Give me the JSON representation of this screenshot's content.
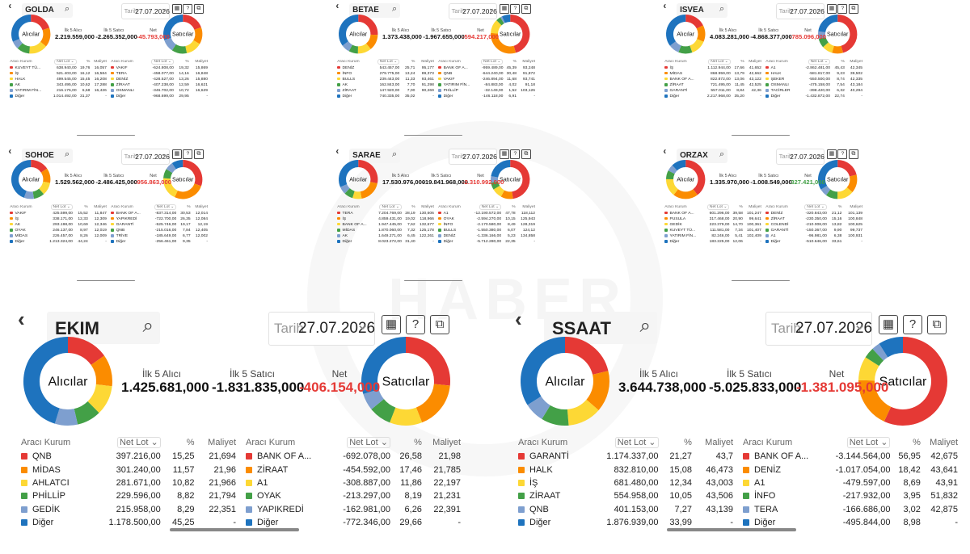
{
  "common": {
    "date_label": "Tarih",
    "date_value": "27.07.2026",
    "col_headers": [
      "Aracı Kurum",
      "Net Lot",
      "%",
      "Maliyet"
    ],
    "buyers_label": "Alıcılar",
    "sellers_label": "Satıcılar",
    "top_buy_label": "İlk 5 Alıcı",
    "top_sell_label": "İlk 5 Satıcı",
    "net_label": "Net",
    "colors": [
      "#e53935",
      "#fb8c00",
      "#fdd835",
      "#43a047",
      "#7e9fcf",
      "#1e73be"
    ]
  },
  "watermark": "HABER",
  "panels": [
    {
      "ticker": "GOLDA",
      "buy_total": "2.219.559,000",
      "sell_total": "-2.265.352,000",
      "net": "-45.793,000",
      "net_sign": "neg",
      "buy_slices": [
        19.76,
        16.12,
        15.45,
        10.62,
        6.68,
        31.37
      ],
      "sell_slices": [
        19.32,
        14.16,
        13.26,
        12.59,
        10.72,
        29.95
      ],
      "buyers": [
        {
          "name": "KUVEYT TÜ...",
          "lot": "638.940,00",
          "pct": "19,76",
          "cost": "16,057"
        },
        {
          "name": "İŞ",
          "lot": "521.403,00",
          "pct": "16,12",
          "cost": "16,584"
        },
        {
          "name": "HALK",
          "lot": "499.545,00",
          "pct": "15,45",
          "cost": "16,208"
        },
        {
          "name": "AK",
          "lot": "343.495,00",
          "pct": "10,62",
          "cost": "17,288"
        },
        {
          "name": "YATIRIM FİN...",
          "lot": "216.176,00",
          "pct": "6,68",
          "cost": "16,426"
        },
        {
          "name": "Diğer",
          "lot": "1.014.492,00",
          "pct": "31,37",
          "cost": "-"
        }
      ],
      "sellers": [
        {
          "name": "VAKIF",
          "lot": "-624.808,00",
          "pct": "19,32",
          "cost": "15,869"
        },
        {
          "name": "TERA",
          "lot": "-458.077,00",
          "pct": "14,16",
          "cost": "16,848"
        },
        {
          "name": "DENİZ",
          "lot": "-428.527,00",
          "pct": "13,26",
          "cost": "15,880"
        },
        {
          "name": "ZİRAAT",
          "lot": "-407.238,00",
          "pct": "12,59",
          "cost": "16,621"
        },
        {
          "name": "OSMANLI",
          "lot": "-346.702,00",
          "pct": "10,72",
          "cost": "16,629"
        },
        {
          "name": "Diğer",
          "lot": "-968.699,00",
          "pct": "29,95",
          "cost": "-"
        }
      ]
    },
    {
      "ticker": "BETAE",
      "buy_total": "1.373.438,000",
      "sell_total": "-1.967.655,000",
      "net": "-594.217,000",
      "net_sign": "neg",
      "buy_slices": [
        25.71,
        13.24,
        11.33,
        7.7,
        7.0,
        35.02
      ],
      "sell_slices": [
        45.39,
        30.48,
        11.68,
        4.02,
        1.52,
        6.91
      ],
      "buyers": [
        {
          "name": "DENİZ",
          "lot": "543.457,00",
          "pct": "25,71",
          "cost": "95,177"
        },
        {
          "name": "İNFO",
          "lot": "279.775,00",
          "pct": "13,24",
          "cost": "89,373"
        },
        {
          "name": "BULLS",
          "lot": "239.443,00",
          "pct": "11,33",
          "cost": "93,461"
        },
        {
          "name": "AK",
          "lot": "162.843,00",
          "pct": "7,70",
          "cost": "91,298"
        },
        {
          "name": "ZİRAAT",
          "lot": "147.920,00",
          "pct": "7,00",
          "cost": "90,269"
        },
        {
          "name": "Diğer",
          "lot": "740.335,00",
          "pct": "35,02",
          "cost": "-"
        }
      ],
      "sellers": [
        {
          "name": "BANK OF A...",
          "lot": "-959.489,00",
          "pct": "45,39",
          "cost": "93,248"
        },
        {
          "name": "QNB",
          "lot": "-644.240,00",
          "pct": "30,48",
          "cost": "91,872"
        },
        {
          "name": "VAKIF",
          "lot": "-246.894,00",
          "pct": "11,68",
          "cost": "93,741"
        },
        {
          "name": "YATIRIM FİN...",
          "lot": "-84.883,00",
          "pct": "4,02",
          "cost": "91,18"
        },
        {
          "name": "PHİLLİP",
          "lot": "-32.149,00",
          "pct": "1,52",
          "cost": "103,126"
        },
        {
          "name": "Diğer",
          "lot": "-146.118,00",
          "pct": "6,91",
          "cost": "-"
        }
      ]
    },
    {
      "ticker": "ISVEA",
      "buy_total": "4.083.281,000",
      "sell_total": "-4.868.377,000",
      "net": "-785.096,000",
      "net_sign": "neg",
      "buy_slices": [
        17.66,
        13.79,
        13.06,
        11.45,
        8.84,
        35.2
      ],
      "sell_slices": [
        45.43,
        9.23,
        8.74,
        7.54,
        6.32,
        22.74
      ],
      "buyers": [
        {
          "name": "İŞ",
          "lot": "1.112.944,00",
          "pct": "17,66",
          "cost": "41,652"
        },
        {
          "name": "MİDAS",
          "lot": "868.959,00",
          "pct": "13,79",
          "cost": "42,662"
        },
        {
          "name": "BANK OF A...",
          "lot": "822.872,00",
          "pct": "13,06",
          "cost": "43,122"
        },
        {
          "name": "ZİRAAT",
          "lot": "721.495,00",
          "pct": "11,45",
          "cost": "42,525"
        },
        {
          "name": "GARANTİ",
          "lot": "557.011,00",
          "pct": "8,84",
          "cost": "42,36"
        },
        {
          "name": "Diğer",
          "lot": "2.217.968,00",
          "pct": "35,20",
          "cost": "-"
        }
      ],
      "sellers": [
        {
          "name": "A1",
          "lot": "-2.862.481,00",
          "pct": "45,43",
          "cost": "42,345"
        },
        {
          "name": "HALK",
          "lot": "-581.817,00",
          "pct": "9,23",
          "cost": "39,502"
        },
        {
          "name": "ŞEKER",
          "lot": "-550.500,00",
          "pct": "8,74",
          "cost": "42,335"
        },
        {
          "name": "OSMANLI",
          "lot": "-475.158,00",
          "pct": "7,54",
          "cost": "43,184"
        },
        {
          "name": "TACİRLER",
          "lot": "-398.420,00",
          "pct": "6,32",
          "cost": "40,294"
        },
        {
          "name": "Diğer",
          "lot": "-1.432.872,00",
          "pct": "22,74",
          "cost": "-"
        }
      ]
    },
    {
      "ticker": "SOHOE",
      "buy_total": "1.529.562,000",
      "sell_total": "-2.486.425,000",
      "net": "-956.863,000",
      "net_sign": "neg",
      "buy_slices": [
        15.52,
        12.33,
        10.69,
        8.97,
        8.26,
        44.24
      ],
      "sell_slices": [
        30.53,
        26.35,
        19.17,
        7.84,
        6.77,
        9.35
      ],
      "buyers": [
        {
          "name": "VAKIF",
          "lot": "425.599,00",
          "pct": "15,52",
          "cost": "11,847"
        },
        {
          "name": "İŞ",
          "lot": "338.171,00",
          "pct": "12,33",
          "cost": "12,309"
        },
        {
          "name": "AK",
          "lot": "293.198,00",
          "pct": "10,69",
          "cost": "12,346"
        },
        {
          "name": "OYAK",
          "lot": "246.137,00",
          "pct": "8,97",
          "cost": "12,019"
        },
        {
          "name": "MİDAS",
          "lot": "226.457,00",
          "pct": "8,26",
          "cost": "12,009"
        },
        {
          "name": "Diğer",
          "lot": "1.213.324,00",
          "pct": "44,24",
          "cost": "-"
        }
      ],
      "sellers": [
        {
          "name": "BANK OF A...",
          "lot": "-837.314,00",
          "pct": "30,53",
          "cost": "12,014"
        },
        {
          "name": "YAPIKREDİ",
          "lot": "-722.700,00",
          "pct": "26,35",
          "cost": "12,084"
        },
        {
          "name": "GARANTİ",
          "lot": "-525.746,00",
          "pct": "19,17",
          "cost": "12,19"
        },
        {
          "name": "QNB",
          "lot": "-215.016,00",
          "pct": "7,84",
          "cost": "12,405"
        },
        {
          "name": "TRİVE",
          "lot": "-185.649,00",
          "pct": "6,77",
          "cost": "12,002"
        },
        {
          "name": "Diğer",
          "lot": "-256.461,00",
          "pct": "9,35",
          "cost": "-"
        }
      ]
    },
    {
      "ticker": "SARAE",
      "buy_total": "17.530.976,000",
      "sell_total": "-19.841.968,000",
      "net": "-2.310.992,000",
      "net_sign": "neg",
      "buy_slices": [
        28.19,
        19.02,
        7.62,
        7.32,
        6.45,
        31.4
      ],
      "sell_slices": [
        47.78,
        10.15,
        8.49,
        6.07,
        5.23,
        22.35
      ],
      "buyers": [
        {
          "name": "TERA",
          "lot": "7.204.769,00",
          "pct": "28,19",
          "cost": "130,606"
        },
        {
          "name": "İŞ",
          "lot": "4.859.431,00",
          "pct": "19,02",
          "cost": "118,966"
        },
        {
          "name": "BANK OF A...",
          "lot": "1.947.445,00",
          "pct": "7,62",
          "cost": "132,677"
        },
        {
          "name": "MİDAS",
          "lot": "1.870.060,00",
          "pct": "7,32",
          "cost": "125,178"
        },
        {
          "name": "AK",
          "lot": "1.649.271,00",
          "pct": "6,45",
          "cost": "122,261"
        },
        {
          "name": "Diğer",
          "lot": "8.023.272,00",
          "pct": "31,40",
          "cost": "-"
        }
      ],
      "sellers": [
        {
          "name": "A1",
          "lot": "-12.190.572,00",
          "pct": "47,78",
          "cost": "118,112"
        },
        {
          "name": "OYAK",
          "lot": "-2.594.270,00",
          "pct": "10,15",
          "cost": "125,943"
        },
        {
          "name": "İNFO",
          "lot": "-2.170.580,00",
          "pct": "8,49",
          "cost": "128,319"
        },
        {
          "name": "BULLS",
          "lot": "-1.550.380,00",
          "pct": "6,07",
          "cost": "124,12"
        },
        {
          "name": "DENİZ",
          "lot": "-1.336.166,00",
          "pct": "5,23",
          "cost": "134,858"
        },
        {
          "name": "Diğer",
          "lot": "-5.712.280,00",
          "pct": "22,35",
          "cost": "-"
        }
      ]
    },
    {
      "ticker": "ORZAX",
      "buy_total": "1.335.970,000",
      "sell_total": "-1.008.549,000",
      "net": "327.421,000",
      "net_sign": "pos",
      "buy_slices": [
        39.58,
        20.9,
        14.7,
        7.34,
        5.41,
        12.06
      ],
      "sell_slices": [
        21.12,
        15.16,
        13.82,
        9.9,
        6.38,
        33.61
      ],
      "buyers": [
        {
          "name": "BANK OF A...",
          "lot": "601.296,00",
          "pct": "39,58",
          "cost": "101,247"
        },
        {
          "name": "PUSULA",
          "lot": "317.468,00",
          "pct": "20,90",
          "cost": "99,641"
        },
        {
          "name": "GEDİK",
          "lot": "223.379,00",
          "pct": "14,70",
          "cost": "100,361"
        },
        {
          "name": "KUVEYT TÜ...",
          "lot": "111.581,00",
          "pct": "7,34",
          "cost": "101,407"
        },
        {
          "name": "YATIRIM FİN...",
          "lot": "82.246,00",
          "pct": "5,41",
          "cost": "102,409"
        },
        {
          "name": "Diğer",
          "lot": "183.225,00",
          "pct": "12,06",
          "cost": "-"
        }
      ],
      "sellers": [
        {
          "name": "DENİZ",
          "lot": "-320.843,00",
          "pct": "21,12",
          "cost": "101,139"
        },
        {
          "name": "ZİRAAT",
          "lot": "-230.350,00",
          "pct": "15,16",
          "cost": "100,848"
        },
        {
          "name": "COLENDİ",
          "lot": "-210.008,00",
          "pct": "13,82",
          "cost": "100,625"
        },
        {
          "name": "GARANTİ",
          "lot": "-150.367,00",
          "pct": "9,90",
          "cost": "99,737"
        },
        {
          "name": "A1",
          "lot": "-96.981,00",
          "pct": "6,38",
          "cost": "100,931"
        },
        {
          "name": "Diğer",
          "lot": "-510.646,00",
          "pct": "33,61",
          "cost": "-"
        }
      ]
    },
    {
      "ticker": "EKIM",
      "buy_total": "1.425.681,000",
      "sell_total": "-1.831.835,000",
      "net": "-406.154,000",
      "net_sign": "neg",
      "buy_slices": [
        15.25,
        11.57,
        10.82,
        8.82,
        8.29,
        45.25
      ],
      "sell_slices": [
        26.58,
        17.46,
        11.86,
        8.19,
        6.26,
        29.66
      ],
      "buyers": [
        {
          "name": "QNB",
          "lot": "397.216,00",
          "pct": "15,25",
          "cost": "21,694"
        },
        {
          "name": "MİDAS",
          "lot": "301.240,00",
          "pct": "11,57",
          "cost": "21,96"
        },
        {
          "name": "AHLATCI",
          "lot": "281.671,00",
          "pct": "10,82",
          "cost": "21,966"
        },
        {
          "name": "PHİLLİP",
          "lot": "229.596,00",
          "pct": "8,82",
          "cost": "21,794"
        },
        {
          "name": "GEDİK",
          "lot": "215.958,00",
          "pct": "8,29",
          "cost": "22,351"
        },
        {
          "name": "Diğer",
          "lot": "1.178.500,00",
          "pct": "45,25",
          "cost": "-"
        }
      ],
      "sellers": [
        {
          "name": "BANK OF A...",
          "lot": "-692.078,00",
          "pct": "26,58",
          "cost": "21,98"
        },
        {
          "name": "ZİRAAT",
          "lot": "-454.592,00",
          "pct": "17,46",
          "cost": "21,785"
        },
        {
          "name": "A1",
          "lot": "-308.887,00",
          "pct": "11,86",
          "cost": "22,197"
        },
        {
          "name": "OYAK",
          "lot": "-213.297,00",
          "pct": "8,19",
          "cost": "21,231"
        },
        {
          "name": "YAPIKREDİ",
          "lot": "-162.981,00",
          "pct": "6,26",
          "cost": "22,391"
        },
        {
          "name": "Diğer",
          "lot": "-772.346,00",
          "pct": "29,66",
          "cost": "-"
        }
      ]
    },
    {
      "ticker": "SSAAT",
      "buy_total": "3.644.738,000",
      "sell_total": "-5.025.833,000",
      "net": "-1.381.095,000",
      "net_sign": "neg",
      "buy_slices": [
        21.27,
        15.08,
        12.34,
        10.05,
        7.27,
        33.99
      ],
      "sell_slices": [
        56.95,
        18.42,
        8.69,
        3.95,
        3.02,
        8.98
      ],
      "buyers": [
        {
          "name": "GARANTİ",
          "lot": "1.174.337,00",
          "pct": "21,27",
          "cost": "43,7"
        },
        {
          "name": "HALK",
          "lot": "832.810,00",
          "pct": "15,08",
          "cost": "46,473"
        },
        {
          "name": "İŞ",
          "lot": "681.480,00",
          "pct": "12,34",
          "cost": "43,003"
        },
        {
          "name": "ZİRAAT",
          "lot": "554.958,00",
          "pct": "10,05",
          "cost": "43,506"
        },
        {
          "name": "QNB",
          "lot": "401.153,00",
          "pct": "7,27",
          "cost": "43,139"
        },
        {
          "name": "Diğer",
          "lot": "1.876.939,00",
          "pct": "33,99",
          "cost": "-"
        }
      ],
      "sellers": [
        {
          "name": "BANK OF A...",
          "lot": "-3.144.564,00",
          "pct": "56,95",
          "cost": "42,675"
        },
        {
          "name": "DENİZ",
          "lot": "-1.017.054,00",
          "pct": "18,42",
          "cost": "43,641"
        },
        {
          "name": "A1",
          "lot": "-479.597,00",
          "pct": "8,69",
          "cost": "43,91"
        },
        {
          "name": "İNFO",
          "lot": "-217.932,00",
          "pct": "3,95",
          "cost": "51,832"
        },
        {
          "name": "TERA",
          "lot": "-166.686,00",
          "pct": "3,02",
          "cost": "42,875"
        },
        {
          "name": "Diğer",
          "lot": "-495.844,00",
          "pct": "8,98",
          "cost": "-"
        }
      ]
    }
  ]
}
